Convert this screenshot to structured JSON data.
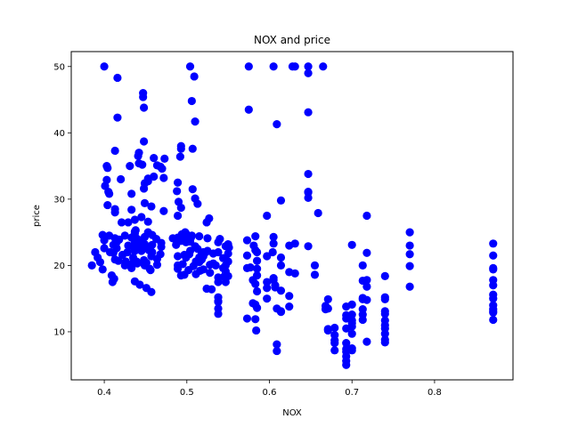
{
  "chart_data": {
    "type": "scatter",
    "title": "NOX and price",
    "xlabel": "NOX",
    "ylabel": "price",
    "xlim": [
      0.36,
      0.895
    ],
    "ylim": [
      2.75,
      52.25
    ],
    "x_ticks": [
      {
        "value": 0.4,
        "label": "0.4"
      },
      {
        "value": 0.5,
        "label": "0.5"
      },
      {
        "value": 0.6,
        "label": "0.6"
      },
      {
        "value": 0.7,
        "label": "0.7"
      },
      {
        "value": 0.8,
        "label": "0.8"
      }
    ],
    "y_ticks": [
      {
        "value": 10,
        "label": "10"
      },
      {
        "value": 20,
        "label": "20"
      },
      {
        "value": 30,
        "label": "30"
      },
      {
        "value": 40,
        "label": "40"
      },
      {
        "value": 50,
        "label": "50"
      }
    ],
    "grid": false,
    "marker_color": "#0000ff",
    "points": [
      [
        0.385,
        20.0
      ],
      [
        0.389,
        22.0
      ],
      [
        0.392,
        21.2
      ],
      [
        0.395,
        20.5
      ],
      [
        0.398,
        19.4
      ],
      [
        0.398,
        24.6
      ],
      [
        0.4,
        23.8
      ],
      [
        0.4,
        22.6
      ],
      [
        0.4,
        50.0
      ],
      [
        0.401,
        32.0
      ],
      [
        0.403,
        32.9
      ],
      [
        0.403,
        35.0
      ],
      [
        0.404,
        34.7
      ],
      [
        0.404,
        29.1
      ],
      [
        0.405,
        31.1
      ],
      [
        0.406,
        30.8
      ],
      [
        0.406,
        24.5
      ],
      [
        0.407,
        22.0
      ],
      [
        0.409,
        18.5
      ],
      [
        0.41,
        17.5
      ],
      [
        0.411,
        21.9
      ],
      [
        0.411,
        23.1
      ],
      [
        0.412,
        18.0
      ],
      [
        0.413,
        20.9
      ],
      [
        0.413,
        24.1
      ],
      [
        0.413,
        28.5
      ],
      [
        0.413,
        28.0
      ],
      [
        0.413,
        37.3
      ],
      [
        0.415,
        23.5
      ],
      [
        0.415,
        22.6
      ],
      [
        0.416,
        48.3
      ],
      [
        0.416,
        42.3
      ],
      [
        0.417,
        20.7
      ],
      [
        0.418,
        23.9
      ],
      [
        0.42,
        33.0
      ],
      [
        0.421,
        26.5
      ],
      [
        0.422,
        21.6
      ],
      [
        0.425,
        24.5
      ],
      [
        0.425,
        20.0
      ],
      [
        0.426,
        20.6
      ],
      [
        0.426,
        20.1
      ],
      [
        0.428,
        22.0
      ],
      [
        0.429,
        23.0
      ],
      [
        0.429,
        26.5
      ],
      [
        0.431,
        35.0
      ],
      [
        0.433,
        19.6
      ],
      [
        0.433,
        24.2
      ],
      [
        0.433,
        30.8
      ],
      [
        0.433,
        28.4
      ],
      [
        0.435,
        21.2
      ],
      [
        0.435,
        20.4
      ],
      [
        0.436,
        22.6
      ],
      [
        0.437,
        26.9
      ],
      [
        0.437,
        25.1
      ],
      [
        0.437,
        17.6
      ],
      [
        0.437,
        23.4
      ],
      [
        0.437,
        24.8
      ],
      [
        0.437,
        22.2
      ],
      [
        0.438,
        25.3
      ],
      [
        0.439,
        20.6
      ],
      [
        0.44,
        20.3
      ],
      [
        0.44,
        24.0
      ],
      [
        0.441,
        36.5
      ],
      [
        0.442,
        35.4
      ],
      [
        0.442,
        37.0
      ],
      [
        0.443,
        17.1
      ],
      [
        0.443,
        23.0
      ],
      [
        0.445,
        22.2
      ],
      [
        0.445,
        23.8
      ],
      [
        0.446,
        35.2
      ],
      [
        0.445,
        27.3
      ],
      [
        0.447,
        45.4
      ],
      [
        0.447,
        46.0
      ],
      [
        0.448,
        20.8
      ],
      [
        0.448,
        43.8
      ],
      [
        0.448,
        38.7
      ],
      [
        0.448,
        31.6
      ],
      [
        0.449,
        23.2
      ],
      [
        0.449,
        20.0
      ],
      [
        0.449,
        29.4
      ],
      [
        0.449,
        24.3
      ],
      [
        0.449,
        32.4
      ],
      [
        0.451,
        16.6
      ],
      [
        0.451,
        20.4
      ],
      [
        0.453,
        26.6
      ],
      [
        0.453,
        22.6
      ],
      [
        0.453,
        33.1
      ],
      [
        0.453,
        32.7
      ],
      [
        0.453,
        25.0
      ],
      [
        0.454,
        22.3
      ],
      [
        0.455,
        19.5
      ],
      [
        0.456,
        19.3
      ],
      [
        0.457,
        21.4
      ],
      [
        0.457,
        16.0
      ],
      [
        0.457,
        28.9
      ],
      [
        0.458,
        22.0
      ],
      [
        0.458,
        23.1
      ],
      [
        0.458,
        24.6
      ],
      [
        0.46,
        36.2
      ],
      [
        0.46,
        33.4
      ],
      [
        0.463,
        24.0
      ],
      [
        0.464,
        20.1
      ],
      [
        0.464,
        21.0
      ],
      [
        0.464,
        35.1
      ],
      [
        0.468,
        34.9
      ],
      [
        0.468,
        21.7
      ],
      [
        0.469,
        22.8
      ],
      [
        0.469,
        23.4
      ],
      [
        0.47,
        34.6
      ],
      [
        0.472,
        28.2
      ],
      [
        0.472,
        33.2
      ],
      [
        0.473,
        36.1
      ],
      [
        0.483,
        24.1
      ],
      [
        0.487,
        23.1
      ],
      [
        0.488,
        31.2
      ],
      [
        0.489,
        20.0
      ],
      [
        0.489,
        24.2
      ],
      [
        0.489,
        27.5
      ],
      [
        0.489,
        32.5
      ],
      [
        0.489,
        19.5
      ],
      [
        0.489,
        21.4
      ],
      [
        0.49,
        29.6
      ],
      [
        0.492,
        36.4
      ],
      [
        0.493,
        38.0
      ],
      [
        0.493,
        37.6
      ],
      [
        0.493,
        18.5
      ],
      [
        0.493,
        23.7
      ],
      [
        0.493,
        28.7
      ],
      [
        0.494,
        24.7
      ],
      [
        0.495,
        20.2
      ],
      [
        0.497,
        21.6
      ],
      [
        0.497,
        18.6
      ],
      [
        0.498,
        25.0
      ],
      [
        0.499,
        23.5
      ],
      [
        0.499,
        21.2
      ],
      [
        0.499,
        24.8
      ],
      [
        0.5,
        24.4
      ],
      [
        0.502,
        19.3
      ],
      [
        0.503,
        21.7
      ],
      [
        0.504,
        22.2
      ],
      [
        0.504,
        23.6
      ],
      [
        0.504,
        50.0
      ],
      [
        0.505,
        24.2
      ],
      [
        0.506,
        44.8
      ],
      [
        0.506,
        24.5
      ],
      [
        0.507,
        31.5
      ],
      [
        0.507,
        37.6
      ],
      [
        0.508,
        19.9
      ],
      [
        0.509,
        48.5
      ],
      [
        0.51,
        22.9
      ],
      [
        0.51,
        41.7
      ],
      [
        0.51,
        30.1
      ],
      [
        0.511,
        20.6
      ],
      [
        0.511,
        18.7
      ],
      [
        0.513,
        29.3
      ],
      [
        0.513,
        22.5
      ],
      [
        0.515,
        20.5
      ],
      [
        0.515,
        21.2
      ],
      [
        0.515,
        24.4
      ],
      [
        0.516,
        19.2
      ],
      [
        0.518,
        21.7
      ],
      [
        0.518,
        20.9
      ],
      [
        0.52,
        22.0
      ],
      [
        0.52,
        19.4
      ],
      [
        0.52,
        21.4
      ],
      [
        0.523,
        22.0
      ],
      [
        0.524,
        26.5
      ],
      [
        0.524,
        16.5
      ],
      [
        0.525,
        22.2
      ],
      [
        0.525,
        24.1
      ],
      [
        0.527,
        27.1
      ],
      [
        0.528,
        20.1
      ],
      [
        0.528,
        18.9
      ],
      [
        0.53,
        16.4
      ],
      [
        0.532,
        20.3
      ],
      [
        0.532,
        21.8
      ],
      [
        0.535,
        20.0
      ],
      [
        0.538,
        18.2
      ],
      [
        0.538,
        13.5
      ],
      [
        0.538,
        14.6
      ],
      [
        0.538,
        22.0
      ],
      [
        0.538,
        23.5
      ],
      [
        0.538,
        15.2
      ],
      [
        0.538,
        12.7
      ],
      [
        0.538,
        14.5
      ],
      [
        0.538,
        17.5
      ],
      [
        0.54,
        24.0
      ],
      [
        0.544,
        19.6
      ],
      [
        0.544,
        21.1
      ],
      [
        0.545,
        18.3
      ],
      [
        0.546,
        18.4
      ],
      [
        0.547,
        22.9
      ],
      [
        0.547,
        20.0
      ],
      [
        0.547,
        19.1
      ],
      [
        0.547,
        17.5
      ],
      [
        0.55,
        21.8
      ],
      [
        0.55,
        23.2
      ],
      [
        0.55,
        20.6
      ],
      [
        0.55,
        18.4
      ],
      [
        0.551,
        22.7
      ],
      [
        0.573,
        23.8
      ],
      [
        0.573,
        21.5
      ],
      [
        0.573,
        19.6
      ],
      [
        0.573,
        12.0
      ],
      [
        0.575,
        43.5
      ],
      [
        0.575,
        50.0
      ],
      [
        0.577,
        19.7
      ],
      [
        0.58,
        17.8
      ],
      [
        0.58,
        14.3
      ],
      [
        0.581,
        23.0
      ],
      [
        0.583,
        22.3
      ],
      [
        0.583,
        24.4
      ],
      [
        0.583,
        11.9
      ],
      [
        0.583,
        17.2
      ],
      [
        0.583,
        14.1
      ],
      [
        0.584,
        10.2
      ],
      [
        0.585,
        16.1
      ],
      [
        0.585,
        13.6
      ],
      [
        0.585,
        19.5
      ],
      [
        0.585,
        18.5
      ],
      [
        0.585,
        20.7
      ],
      [
        0.585,
        22.0
      ],
      [
        0.597,
        21.4
      ],
      [
        0.597,
        27.5
      ],
      [
        0.597,
        17.5
      ],
      [
        0.597,
        15.0
      ],
      [
        0.597,
        16.6
      ],
      [
        0.604,
        22.0
      ],
      [
        0.605,
        24.3
      ],
      [
        0.605,
        18.1
      ],
      [
        0.605,
        50.0
      ],
      [
        0.605,
        23.3
      ],
      [
        0.605,
        17.8
      ],
      [
        0.607,
        17.0
      ],
      [
        0.607,
        16.7
      ],
      [
        0.609,
        8.1
      ],
      [
        0.609,
        7.1
      ],
      [
        0.609,
        13.5
      ],
      [
        0.609,
        41.3
      ],
      [
        0.614,
        29.8
      ],
      [
        0.614,
        16.2
      ],
      [
        0.614,
        20.0
      ],
      [
        0.614,
        13.1
      ],
      [
        0.614,
        21.2
      ],
      [
        0.614,
        13.0
      ],
      [
        0.624,
        15.4
      ],
      [
        0.624,
        19.0
      ],
      [
        0.624,
        13.8
      ],
      [
        0.624,
        23.0
      ],
      [
        0.628,
        50.0
      ],
      [
        0.631,
        50.0
      ],
      [
        0.631,
        23.3
      ],
      [
        0.631,
        18.8
      ],
      [
        0.647,
        30.2
      ],
      [
        0.647,
        49.0
      ],
      [
        0.647,
        33.8
      ],
      [
        0.647,
        31.1
      ],
      [
        0.647,
        31.0
      ],
      [
        0.647,
        43.1
      ],
      [
        0.647,
        22.9
      ],
      [
        0.647,
        50.0
      ],
      [
        0.655,
        20.0
      ],
      [
        0.655,
        18.6
      ],
      [
        0.659,
        27.9
      ],
      [
        0.665,
        50.0
      ],
      [
        0.668,
        13.9
      ],
      [
        0.668,
        13.4
      ],
      [
        0.671,
        14.9
      ],
      [
        0.671,
        10.4
      ],
      [
        0.671,
        10.4
      ],
      [
        0.671,
        13.5
      ],
      [
        0.671,
        10.2
      ],
      [
        0.679,
        9.5
      ],
      [
        0.679,
        8.7
      ],
      [
        0.679,
        8.3
      ],
      [
        0.679,
        10.6
      ],
      [
        0.679,
        7.2
      ],
      [
        0.693,
        13.8
      ],
      [
        0.693,
        10.5
      ],
      [
        0.693,
        12.0
      ],
      [
        0.693,
        8.3
      ],
      [
        0.693,
        6.3
      ],
      [
        0.693,
        5.0
      ],
      [
        0.693,
        5.6
      ],
      [
        0.693,
        7.0
      ],
      [
        0.693,
        12.5
      ],
      [
        0.693,
        7.4
      ],
      [
        0.7,
        9.7
      ],
      [
        0.7,
        11.3
      ],
      [
        0.7,
        10.8
      ],
      [
        0.7,
        23.1
      ],
      [
        0.7,
        14.1
      ],
      [
        0.7,
        11.7
      ],
      [
        0.7,
        12.6
      ],
      [
        0.7,
        7.2
      ],
      [
        0.7,
        7.5
      ],
      [
        0.713,
        14.9
      ],
      [
        0.713,
        13.4
      ],
      [
        0.713,
        17.7
      ],
      [
        0.713,
        20.0
      ],
      [
        0.713,
        15.1
      ],
      [
        0.713,
        11.8
      ],
      [
        0.713,
        12.6
      ],
      [
        0.718,
        17.8
      ],
      [
        0.718,
        16.8
      ],
      [
        0.718,
        27.5
      ],
      [
        0.718,
        14.8
      ],
      [
        0.718,
        21.9
      ],
      [
        0.718,
        8.5
      ],
      [
        0.74,
        8.4
      ],
      [
        0.74,
        12.7
      ],
      [
        0.74,
        10.5
      ],
      [
        0.74,
        9.7
      ],
      [
        0.74,
        14.9
      ],
      [
        0.74,
        13.1
      ],
      [
        0.74,
        11.7
      ],
      [
        0.74,
        18.4
      ],
      [
        0.74,
        8.8
      ],
      [
        0.74,
        11.0
      ],
      [
        0.74,
        15.2
      ],
      [
        0.77,
        25.0
      ],
      [
        0.77,
        23.0
      ],
      [
        0.77,
        21.7
      ],
      [
        0.77,
        19.9
      ],
      [
        0.77,
        16.8
      ],
      [
        0.871,
        13.4
      ],
      [
        0.871,
        15.6
      ],
      [
        0.871,
        17.8
      ],
      [
        0.871,
        19.6
      ],
      [
        0.871,
        23.3
      ],
      [
        0.871,
        21.5
      ],
      [
        0.871,
        13.1
      ],
      [
        0.871,
        17.0
      ],
      [
        0.871,
        11.8
      ],
      [
        0.871,
        19.4
      ],
      [
        0.871,
        15.0
      ],
      [
        0.871,
        14.0
      ],
      [
        0.871,
        12.9
      ]
    ]
  }
}
